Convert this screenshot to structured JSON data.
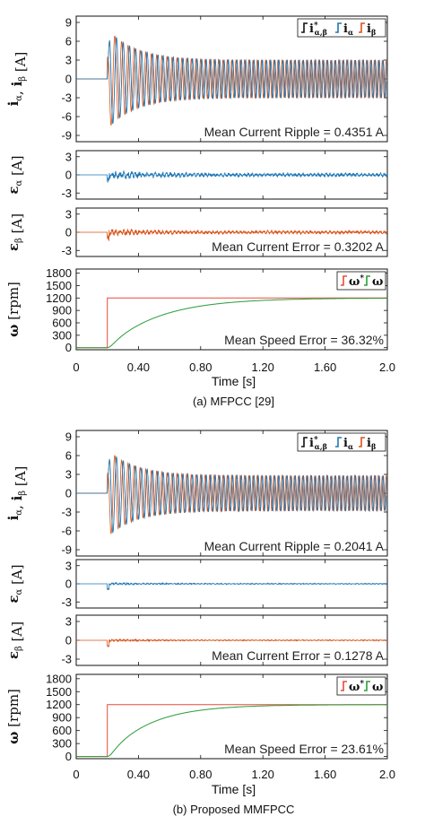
{
  "colors": {
    "reference": "#e84a3a",
    "speed": "#2a9d3a",
    "i_alpha": "#1f77b4",
    "i_beta": "#d95319",
    "ref_current": "#111111"
  },
  "figures": [
    {
      "caption": "(a) MFPCC [29]",
      "xlabel": "Time [s]",
      "panels": [
        {
          "ylabel_main": "i",
          "ylabel_sub1": "α",
          "ylabel_sep": ", ",
          "ylabel_main2": "i",
          "ylabel_sub2": "β",
          "ylabel_unit": " [A]",
          "annotation": "Mean Current Ripple = 0.4351 A",
          "legend": [
            {
              "label_main": "i",
              "label_sup": "*",
              "label_sub": "α,β",
              "color": "#111111"
            },
            {
              "label_main": "i",
              "label_sub": "α",
              "color": "#1f77b4"
            },
            {
              "label_main": "i",
              "label_sub": "β",
              "color": "#d95319"
            }
          ]
        },
        {
          "ylabel_main": "ε",
          "ylabel_sub1": "α",
          "ylabel_unit": " [A]",
          "annotation": ""
        },
        {
          "ylabel_main": "ε",
          "ylabel_sub1": "β",
          "ylabel_unit": " [A]",
          "annotation": "Mean Current Error = 0.3202 A"
        },
        {
          "ylabel_main": "ω",
          "ylabel_unit": " [rpm]",
          "annotation": "Mean Speed Error = 36.32%",
          "legend": [
            {
              "label_main": "ω",
              "label_sup": "*",
              "color": "#e84a3a"
            },
            {
              "label_main": "ω",
              "color": "#2a9d3a"
            }
          ]
        }
      ]
    },
    {
      "caption": "(b) Proposed MMFPCC",
      "xlabel": "Time [s]",
      "panels": [
        {
          "ylabel_main": "i",
          "ylabel_sub1": "α",
          "ylabel_sep": ", ",
          "ylabel_main2": "i",
          "ylabel_sub2": "β",
          "ylabel_unit": " [A]",
          "annotation": "Mean Current Ripple = 0.2041 A",
          "legend": [
            {
              "label_main": "i",
              "label_sup": "*",
              "label_sub": "α,β",
              "color": "#111111"
            },
            {
              "label_main": "i",
              "label_sub": "α",
              "color": "#1f77b4"
            },
            {
              "label_main": "i",
              "label_sub": "β",
              "color": "#d95319"
            }
          ]
        },
        {
          "ylabel_main": "ε",
          "ylabel_sub1": "α",
          "ylabel_unit": " [A]",
          "annotation": ""
        },
        {
          "ylabel_main": "ε",
          "ylabel_sub1": "β",
          "ylabel_unit": " [A]",
          "annotation": "Mean Current Error = 0.1278 A"
        },
        {
          "ylabel_main": "ω",
          "ylabel_unit": " [rpm]",
          "annotation": "Mean Speed Error = 23.61%",
          "legend": [
            {
              "label_main": "ω",
              "label_sup": "*",
              "color": "#e84a3a"
            },
            {
              "label_main": "ω",
              "color": "#2a9d3a"
            }
          ]
        }
      ]
    }
  ],
  "chart_data": [
    {
      "type": "line",
      "xlim": [
        0,
        2.0
      ],
      "x_ticks": [
        "0",
        "0.40",
        "0.80",
        "1.20",
        "1.60",
        "2.0"
      ],
      "x_tick_values": [
        0,
        0.4,
        0.8,
        1.2,
        1.6,
        2.0
      ],
      "xlabel": "Time [s]",
      "subplots": [
        {
          "name": "currents",
          "ylim": [
            -10,
            10
          ],
          "y_ticks": [
            -9,
            -6,
            -3,
            0,
            3,
            6,
            9
          ],
          "series": [
            {
              "name": "i_alpha",
              "step_time": 0.2,
              "peak_amplitude": 8.0,
              "steady_amplitude": 3.0,
              "start_freq_hz": 20,
              "end_freq_hz": 40
            },
            {
              "name": "i_beta",
              "step_time": 0.2,
              "peak_amplitude": 8.0,
              "steady_amplitude": 3.0,
              "phase_shift_deg": 90
            }
          ]
        },
        {
          "name": "eps_alpha",
          "ylim": [
            -4,
            4
          ],
          "y_ticks": [
            -3,
            0,
            3
          ],
          "noise_amplitude": 0.6
        },
        {
          "name": "eps_beta",
          "ylim": [
            -4,
            4
          ],
          "y_ticks": [
            -3,
            0,
            3
          ],
          "noise_amplitude": 0.5
        },
        {
          "name": "speed",
          "ylim": [
            -50,
            1900
          ],
          "y_ticks": [
            0,
            300,
            600,
            900,
            1200,
            1500,
            1800
          ],
          "series": [
            {
              "name": "omega_ref",
              "step_time": 0.2,
              "value": 1200
            },
            {
              "name": "omega",
              "step_time": 0.2,
              "final": 1200,
              "tau": 0.33
            }
          ]
        }
      ]
    },
    {
      "type": "line",
      "xlim": [
        0,
        2.0
      ],
      "x_ticks": [
        "0",
        "0.40",
        "0.80",
        "1.20",
        "1.60",
        "2.0"
      ],
      "x_tick_values": [
        0,
        0.4,
        0.8,
        1.2,
        1.6,
        2.0
      ],
      "xlabel": "Time [s]",
      "subplots": [
        {
          "name": "currents",
          "ylim": [
            -10,
            10
          ],
          "y_ticks": [
            -9,
            -6,
            -3,
            0,
            3,
            6,
            9
          ],
          "series": [
            {
              "name": "i_alpha",
              "step_time": 0.2,
              "peak_amplitude": 7.0,
              "steady_amplitude": 2.8,
              "start_freq_hz": 20,
              "end_freq_hz": 40
            },
            {
              "name": "i_beta",
              "step_time": 0.2,
              "peak_amplitude": 7.0,
              "steady_amplitude": 2.8,
              "phase_shift_deg": 90
            }
          ]
        },
        {
          "name": "eps_alpha",
          "ylim": [
            -4,
            4
          ],
          "y_ticks": [
            -3,
            0,
            3
          ],
          "noise_amplitude": 0.15
        },
        {
          "name": "eps_beta",
          "ylim": [
            -4,
            4
          ],
          "y_ticks": [
            -3,
            0,
            3
          ],
          "noise_amplitude": 0.15
        },
        {
          "name": "speed",
          "ylim": [
            -50,
            1900
          ],
          "y_ticks": [
            0,
            300,
            600,
            900,
            1200,
            1500,
            1800
          ],
          "series": [
            {
              "name": "omega_ref",
              "step_time": 0.2,
              "value": 1200
            },
            {
              "name": "omega",
              "step_time": 0.2,
              "final": 1200,
              "tau": 0.27
            }
          ]
        }
      ]
    }
  ]
}
